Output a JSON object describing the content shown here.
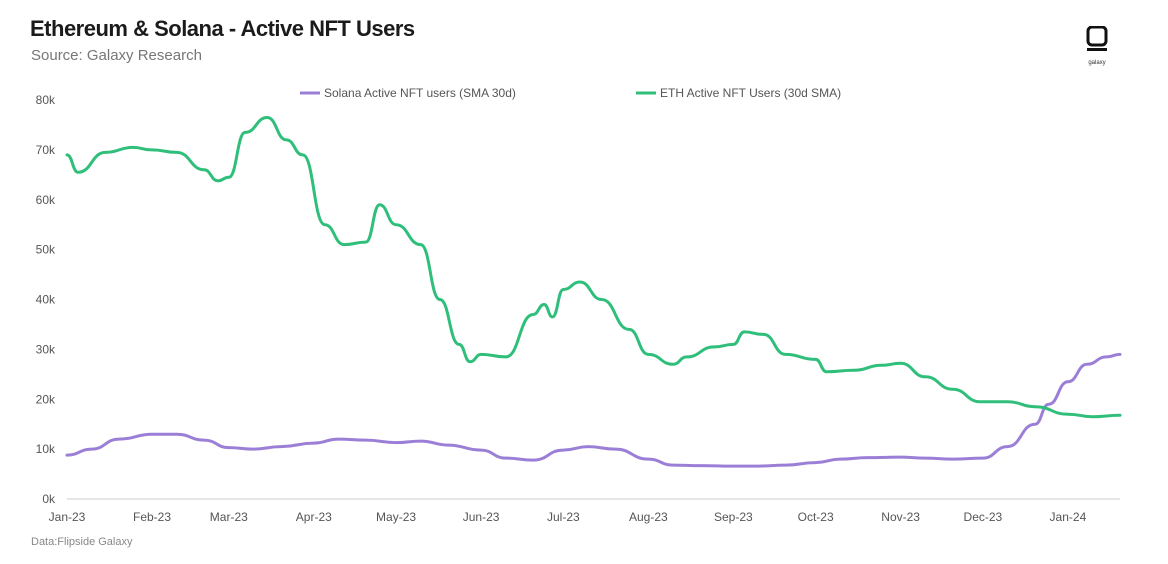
{
  "header": {
    "title": "Ethereum & Solana - Active NFT Users",
    "subtitle": "Source: Galaxy Research"
  },
  "logo": {
    "text": "galaxy"
  },
  "footer": {
    "note": "Data:Flipside Galaxy"
  },
  "chart_data": {
    "type": "line",
    "title": "Ethereum & Solana - Active NFT Users",
    "xlabel": "",
    "ylabel": "",
    "x_ticks": [
      "Jan-23",
      "Feb-23",
      "Mar-23",
      "Apr-23",
      "May-23",
      "Jun-23",
      "Jul-23",
      "Aug-23",
      "Sep-23",
      "Oct-23",
      "Nov-23",
      "Dec-23",
      "Jan-24"
    ],
    "y_ticks": [
      "0k",
      "10k",
      "20k",
      "30k",
      "40k",
      "50k",
      "60k",
      "70k",
      "80k"
    ],
    "ylim": [
      0,
      80000
    ],
    "grid": false,
    "legend_position": "top-center",
    "series": [
      {
        "name": "Solana Active NFT users (SMA 30d)",
        "color": "#9b7fd6",
        "points": [
          [
            "2023-01-01",
            8800
          ],
          [
            "2023-01-10",
            10000
          ],
          [
            "2023-01-20",
            12000
          ],
          [
            "2023-02-01",
            13000
          ],
          [
            "2023-02-10",
            13000
          ],
          [
            "2023-02-20",
            11800
          ],
          [
            "2023-03-01",
            10300
          ],
          [
            "2023-03-10",
            10000
          ],
          [
            "2023-03-20",
            10500
          ],
          [
            "2023-04-01",
            11200
          ],
          [
            "2023-04-10",
            12000
          ],
          [
            "2023-04-20",
            11800
          ],
          [
            "2023-05-01",
            11300
          ],
          [
            "2023-05-10",
            11600
          ],
          [
            "2023-05-20",
            10800
          ],
          [
            "2023-06-01",
            9800
          ],
          [
            "2023-06-10",
            8200
          ],
          [
            "2023-06-20",
            7800
          ],
          [
            "2023-07-01",
            9800
          ],
          [
            "2023-07-10",
            10500
          ],
          [
            "2023-07-20",
            10000
          ],
          [
            "2023-08-01",
            8000
          ],
          [
            "2023-08-10",
            6800
          ],
          [
            "2023-08-20",
            6700
          ],
          [
            "2023-09-01",
            6600
          ],
          [
            "2023-09-10",
            6600
          ],
          [
            "2023-09-20",
            6800
          ],
          [
            "2023-10-01",
            7300
          ],
          [
            "2023-10-10",
            8000
          ],
          [
            "2023-10-20",
            8300
          ],
          [
            "2023-11-01",
            8400
          ],
          [
            "2023-11-10",
            8200
          ],
          [
            "2023-11-20",
            8000
          ],
          [
            "2023-12-01",
            8200
          ],
          [
            "2023-12-10",
            10500
          ],
          [
            "2023-12-20",
            15000
          ],
          [
            "2023-12-25",
            19000
          ],
          [
            "2024-01-01",
            23500
          ],
          [
            "2024-01-08",
            27000
          ],
          [
            "2024-01-15",
            28500
          ],
          [
            "2024-01-20",
            29000
          ]
        ]
      },
      {
        "name": "ETH Active NFT Users (30d SMA)",
        "color": "#2fbf7a",
        "points": [
          [
            "2023-01-01",
            69000
          ],
          [
            "2023-01-05",
            65500
          ],
          [
            "2023-01-15",
            69500
          ],
          [
            "2023-01-25",
            70500
          ],
          [
            "2023-02-01",
            70000
          ],
          [
            "2023-02-10",
            69500
          ],
          [
            "2023-02-20",
            66000
          ],
          [
            "2023-02-25",
            63800
          ],
          [
            "2023-03-01",
            64500
          ],
          [
            "2023-03-07",
            73500
          ],
          [
            "2023-03-15",
            76500
          ],
          [
            "2023-03-22",
            72000
          ],
          [
            "2023-03-28",
            69000
          ],
          [
            "2023-04-05",
            55000
          ],
          [
            "2023-04-12",
            51000
          ],
          [
            "2023-04-20",
            51500
          ],
          [
            "2023-04-25",
            59000
          ],
          [
            "2023-05-01",
            55000
          ],
          [
            "2023-05-10",
            51000
          ],
          [
            "2023-05-17",
            40000
          ],
          [
            "2023-05-24",
            31000
          ],
          [
            "2023-05-28",
            27500
          ],
          [
            "2023-06-01",
            29000
          ],
          [
            "2023-06-10",
            28500
          ],
          [
            "2023-06-20",
            37000
          ],
          [
            "2023-06-24",
            39000
          ],
          [
            "2023-06-27",
            36500
          ],
          [
            "2023-07-01",
            42000
          ],
          [
            "2023-07-07",
            43500
          ],
          [
            "2023-07-15",
            40000
          ],
          [
            "2023-07-25",
            34000
          ],
          [
            "2023-08-01",
            29000
          ],
          [
            "2023-08-10",
            27000
          ],
          [
            "2023-08-15",
            28500
          ],
          [
            "2023-08-25",
            30500
          ],
          [
            "2023-09-01",
            31000
          ],
          [
            "2023-09-05",
            33500
          ],
          [
            "2023-09-12",
            33000
          ],
          [
            "2023-09-20",
            29000
          ],
          [
            "2023-10-01",
            28000
          ],
          [
            "2023-10-05",
            25500
          ],
          [
            "2023-10-15",
            25800
          ],
          [
            "2023-10-25",
            26800
          ],
          [
            "2023-11-01",
            27200
          ],
          [
            "2023-11-10",
            24500
          ],
          [
            "2023-11-20",
            22000
          ],
          [
            "2023-11-30",
            19500
          ],
          [
            "2023-12-10",
            19500
          ],
          [
            "2023-12-20",
            18500
          ],
          [
            "2024-01-01",
            17000
          ],
          [
            "2024-01-10",
            16500
          ],
          [
            "2024-01-20",
            16800
          ]
        ]
      }
    ]
  }
}
